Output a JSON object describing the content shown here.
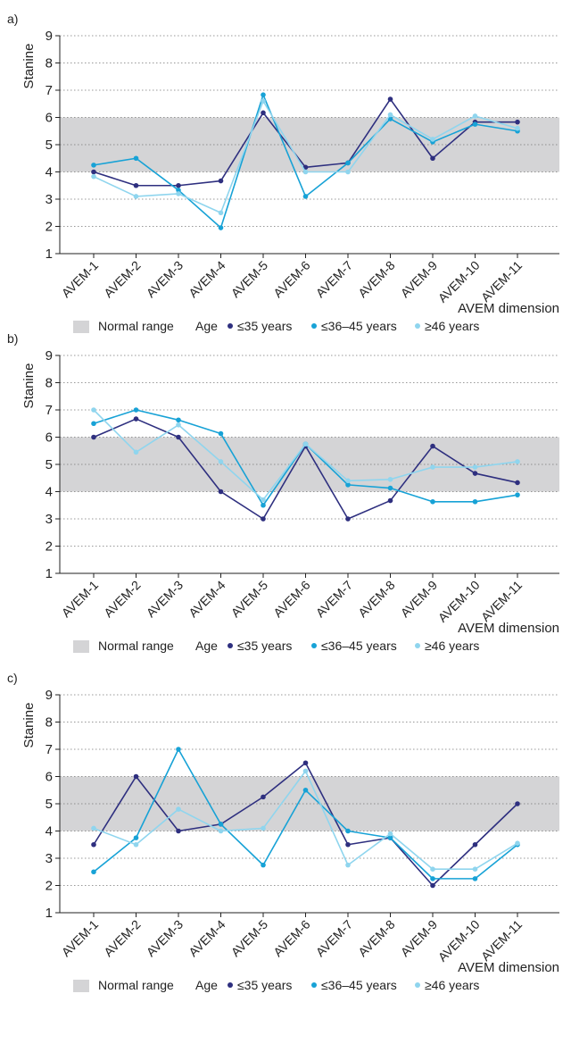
{
  "colors": {
    "normal_range": "#d4d4d6",
    "series": [
      "#2e2f7f",
      "#17a2d6",
      "#8fd5ee"
    ],
    "grid": "#777777",
    "axis": "#222222"
  },
  "legend": {
    "normal_range": "Normal range",
    "age_label": "Age"
  },
  "chart_data": [
    {
      "type": "line",
      "panel": "a)",
      "ylabel": "Stanine",
      "xlabel": "AVEM dimension",
      "ylim": [
        1,
        9
      ],
      "yticks": [
        "1",
        "2",
        "3",
        "4",
        "5",
        "6",
        "7",
        "8",
        "9"
      ],
      "normal_range": [
        4,
        6
      ],
      "grid": true,
      "legend_position": "bottom",
      "categories": [
        "AVEM-1",
        "AVEM-2",
        "AVEM-3",
        "AVEM-4",
        "AVEM-5",
        "AVEM-6",
        "AVEM-7",
        "AVEM-8",
        "AVEM-9",
        "AVEM-10",
        "AVEM-11"
      ],
      "series": [
        {
          "name": "≤35 years",
          "values": [
            4.0,
            3.5,
            3.5,
            3.67,
            6.17,
            4.17,
            4.33,
            6.67,
            4.5,
            5.83,
            5.83
          ]
        },
        {
          "name": "≤36–45 years",
          "values": [
            4.25,
            4.5,
            3.33,
            1.95,
            6.83,
            3.1,
            4.33,
            5.95,
            5.1,
            5.75,
            5.5
          ]
        },
        {
          "name": "≥46 years",
          "values": [
            3.83,
            3.1,
            3.2,
            2.5,
            6.6,
            4.0,
            4.0,
            6.1,
            5.2,
            6.05,
            5.6
          ]
        }
      ]
    },
    {
      "type": "line",
      "panel": "b)",
      "ylabel": "Stanine",
      "xlabel": "AVEM dimension",
      "ylim": [
        1,
        9
      ],
      "yticks": [
        "1",
        "2",
        "3",
        "4",
        "5",
        "6",
        "7",
        "8",
        "9"
      ],
      "normal_range": [
        4,
        6
      ],
      "grid": true,
      "legend_position": "bottom",
      "categories": [
        "AVEM-1",
        "AVEM-2",
        "AVEM-3",
        "AVEM-4",
        "AVEM-5",
        "AVEM-6",
        "AVEM-7",
        "AVEM-8",
        "AVEM-9",
        "AVEM-10",
        "AVEM-11"
      ],
      "series": [
        {
          "name": "≤35 years",
          "values": [
            6.0,
            6.67,
            6.0,
            4.0,
            3.0,
            5.67,
            3.0,
            3.67,
            5.67,
            4.67,
            4.33
          ]
        },
        {
          "name": "≤36–45 years",
          "values": [
            6.5,
            7.0,
            6.63,
            6.13,
            3.5,
            5.75,
            4.25,
            4.13,
            3.63,
            3.63,
            3.88
          ]
        },
        {
          "name": "≥46 years",
          "values": [
            7.0,
            5.45,
            6.45,
            5.1,
            3.7,
            5.75,
            4.4,
            4.45,
            4.9,
            4.9,
            5.1
          ]
        }
      ]
    },
    {
      "type": "line",
      "panel": "c)",
      "ylabel": "Stanine",
      "xlabel": "AVEM dimension",
      "ylim": [
        1,
        9
      ],
      "yticks": [
        "1",
        "2",
        "3",
        "4",
        "5",
        "6",
        "7",
        "8",
        "9"
      ],
      "normal_range": [
        4,
        6
      ],
      "grid": true,
      "legend_position": "bottom",
      "categories": [
        "AVEM-1",
        "AVEM-2",
        "AVEM-3",
        "AVEM-4",
        "AVEM-5",
        "AVEM-6",
        "AVEM-7",
        "AVEM-8",
        "AVEM-9",
        "AVEM-10",
        "AVEM-11"
      ],
      "series": [
        {
          "name": "≤35 years",
          "values": [
            3.5,
            6.0,
            4.0,
            4.25,
            5.25,
            6.5,
            3.5,
            3.75,
            2.0,
            3.5,
            5.0
          ]
        },
        {
          "name": "≤36–45 years",
          "values": [
            2.5,
            3.75,
            7.0,
            4.25,
            2.75,
            5.5,
            4.0,
            3.75,
            2.25,
            2.25,
            3.5
          ]
        },
        {
          "name": "≥46 years",
          "values": [
            4.1,
            3.5,
            4.8,
            4.0,
            4.1,
            6.2,
            2.75,
            3.9,
            2.6,
            2.6,
            3.55
          ]
        }
      ]
    }
  ]
}
